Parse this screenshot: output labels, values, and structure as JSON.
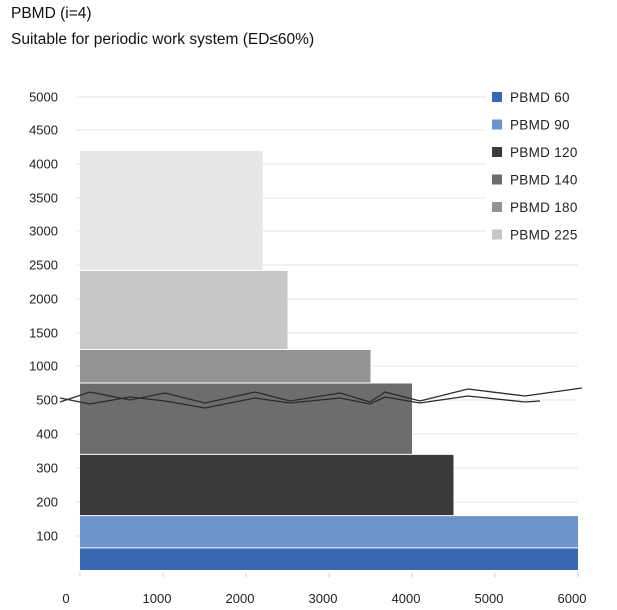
{
  "header": {
    "title": "PBMD (i=4)",
    "subtitle": "Suitable for periodic work system (ED≤60%)"
  },
  "chart_data": {
    "type": "bar",
    "title": "PBMD (i=4)",
    "subtitle": "Suitable for periodic work system (ED≤60%)",
    "xlabel": "",
    "ylabel": "",
    "x_ticks": [
      0,
      1000,
      2000,
      3000,
      4000,
      5000,
      6000
    ],
    "xlim": [
      0,
      6000
    ],
    "y_ticks": [
      "100",
      "200",
      "300",
      "400",
      "500",
      "1000",
      "1500",
      "2000",
      "2500",
      "3000",
      "3500",
      "4000",
      "4500",
      "5000"
    ],
    "y_axis_note": "non-linear (broken) axis: lower section 0-500 in steps of 100, upper section 500-5000 in steps of 500",
    "grid": true,
    "legend_position": "right",
    "series": [
      {
        "name": "PBMD 60",
        "color": "#3a68b4",
        "x_max": 6000,
        "y_min": 0,
        "y_max": 65
      },
      {
        "name": "PBMD 90",
        "color": "#6e94cc",
        "x_max": 6000,
        "y_min": 65,
        "y_max": 160
      },
      {
        "name": "PBMD 120",
        "color": "#3a3a3c",
        "x_max": 4500,
        "y_min": 160,
        "y_max": 340
      },
      {
        "name": "PBMD 140",
        "color": "#6d6d6f",
        "x_max": 4000,
        "y_min": 340,
        "y_max": 750
      },
      {
        "name": "PBMD 180",
        "color": "#939394",
        "x_max": 3500,
        "y_min": 750,
        "y_max": 1250
      },
      {
        "name": "PBMD 225",
        "color": "#c6c6c8",
        "x_max": 2500,
        "y_min": 1250,
        "y_max": 2420
      },
      {
        "name": "",
        "color": "#e7e7e9",
        "x_max": 2200,
        "y_min": 2420,
        "y_max": 4200
      }
    ]
  }
}
